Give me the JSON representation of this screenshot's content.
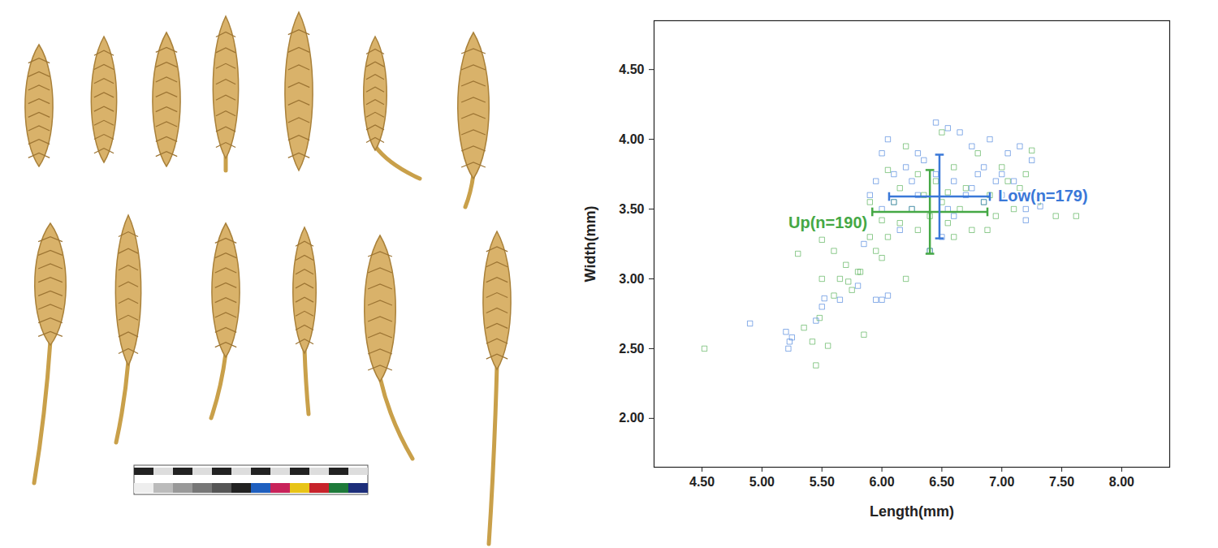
{
  "chart_data": {
    "type": "scatter",
    "x_label": "Length(mm)",
    "y_label": "Width(mm)",
    "xlim": [
      4.1,
      8.4
    ],
    "ylim": [
      1.65,
      4.85
    ],
    "xticks": [
      {
        "value": 4.5,
        "label": "4.50"
      },
      {
        "value": 5,
        "label": "5.00"
      },
      {
        "value": 5.5,
        "label": "5.50"
      },
      {
        "value": 6,
        "label": "6.00"
      },
      {
        "value": 6.5,
        "label": "6.50"
      },
      {
        "value": 7,
        "label": "7.00"
      },
      {
        "value": 7.5,
        "label": "7.50"
      },
      {
        "value": 8,
        "label": "8.00"
      }
    ],
    "yticks": [
      {
        "value": 2,
        "label": "2.00"
      },
      {
        "value": 2.5,
        "label": "2.50"
      },
      {
        "value": 3,
        "label": "3.00"
      },
      {
        "value": 3.5,
        "label": "3.50"
      },
      {
        "value": 4,
        "label": "4.00"
      },
      {
        "value": 4.5,
        "label": "4.50"
      }
    ],
    "series": [
      {
        "name": "Up(n=190)",
        "color": "#45a845",
        "marker": "square",
        "x": [
          4.52,
          5.45,
          5.42,
          5.55,
          5.48,
          5.6,
          5.5,
          5.6,
          5.65,
          5.72,
          5.85,
          5.8,
          5.9,
          5.95,
          6.0,
          6.05,
          6.1,
          6.15,
          6.2,
          6.25,
          6.3,
          6.35,
          6.4,
          6.45,
          6.5,
          6.55,
          6.6,
          6.65,
          6.7,
          6.75,
          6.8,
          6.85,
          6.9,
          6.95,
          7.0,
          7.05,
          7.1,
          7.2,
          7.25,
          7.3,
          7.45,
          7.62,
          6.5,
          6.2,
          5.82,
          5.75,
          5.3,
          5.35,
          5.9,
          6.0,
          6.3,
          6.6,
          6.88,
          7.15,
          6.4,
          6.55,
          6.15,
          5.5,
          5.7,
          6.05
        ],
        "y": [
          2.5,
          2.38,
          2.55,
          2.52,
          2.72,
          2.88,
          3.0,
          3.2,
          3.0,
          2.98,
          2.6,
          3.05,
          3.3,
          3.2,
          3.42,
          3.3,
          3.55,
          3.4,
          3.0,
          3.5,
          3.35,
          3.6,
          3.2,
          3.7,
          3.55,
          3.4,
          3.8,
          3.5,
          3.65,
          3.35,
          3.9,
          3.55,
          3.6,
          3.45,
          3.8,
          3.7,
          3.5,
          3.75,
          3.92,
          3.55,
          3.45,
          3.45,
          4.05,
          3.95,
          3.05,
          2.92,
          3.18,
          2.65,
          3.55,
          3.15,
          3.75,
          3.3,
          3.35,
          3.65,
          3.45,
          3.62,
          3.65,
          3.28,
          3.1,
          3.78
        ],
        "mean": {
          "x": 6.4,
          "y": 3.48
        },
        "x_error": 0.48,
        "y_error": 0.3
      },
      {
        "name": "Low(n=179)",
        "color": "#3a78d8",
        "marker": "square",
        "x": [
          4.9,
          5.2,
          5.23,
          5.22,
          5.25,
          5.45,
          5.5,
          5.52,
          5.65,
          5.8,
          5.95,
          6.0,
          6.05,
          5.9,
          5.95,
          6.0,
          6.05,
          6.1,
          6.2,
          6.25,
          6.3,
          6.35,
          6.4,
          6.45,
          6.5,
          6.55,
          6.6,
          6.65,
          6.7,
          6.75,
          6.8,
          6.85,
          6.9,
          6.95,
          7.0,
          7.05,
          7.1,
          7.15,
          7.2,
          7.25,
          7.3,
          7.32,
          7.2,
          6.6,
          6.3,
          6.15,
          6.0,
          6.85,
          7.0,
          6.45,
          6.55,
          6.75,
          6.1,
          5.85,
          6.25
        ],
        "y": [
          2.68,
          2.62,
          2.55,
          2.5,
          2.58,
          2.7,
          2.8,
          2.86,
          2.85,
          2.95,
          2.85,
          2.85,
          2.88,
          3.6,
          3.7,
          3.9,
          4.0,
          3.75,
          3.8,
          3.5,
          3.9,
          3.85,
          3.2,
          4.12,
          3.3,
          4.08,
          3.7,
          4.05,
          3.6,
          3.95,
          3.75,
          3.8,
          4.0,
          3.7,
          3.75,
          3.9,
          3.7,
          3.95,
          3.5,
          3.85,
          3.6,
          3.52,
          3.42,
          3.45,
          3.6,
          3.35,
          3.5,
          3.55,
          3.6,
          3.75,
          3.5,
          3.65,
          3.55,
          3.25,
          3.7
        ],
        "mean": {
          "x": 6.48,
          "y": 3.59
        },
        "x_error": 0.42,
        "y_error": 0.3
      }
    ]
  }
}
